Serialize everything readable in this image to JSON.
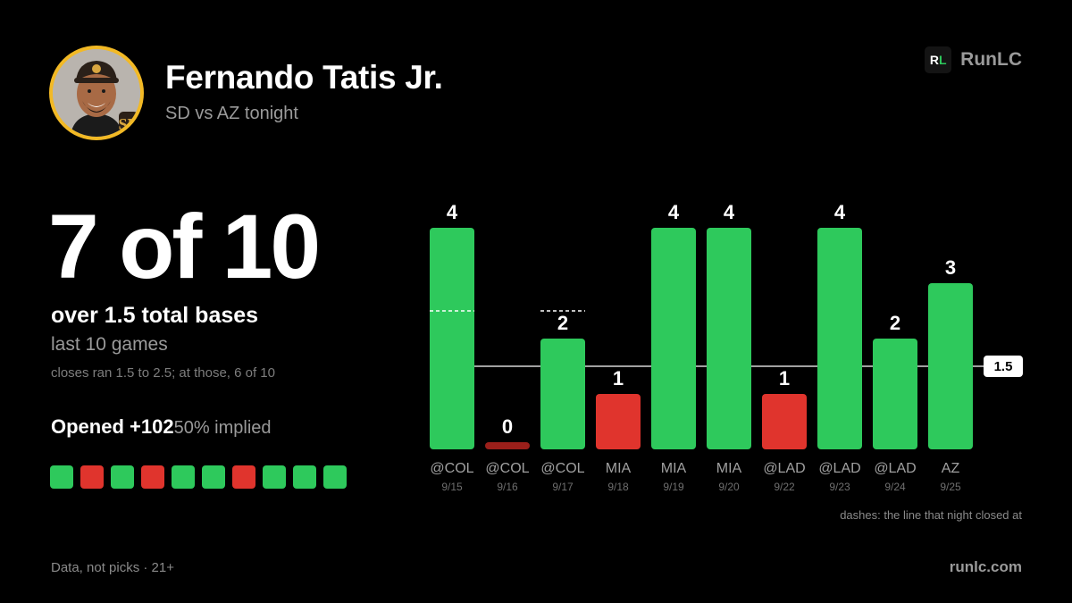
{
  "header": {
    "player_name": "Fernando Tatis Jr.",
    "matchup": "SD vs AZ tonight",
    "team_logo": "padres-sd-icon"
  },
  "brand": {
    "logo_text_r": "R",
    "logo_text_l": "L",
    "name": "RunLC",
    "url": "runlc.com"
  },
  "summary": {
    "headline": "7 of 10",
    "label": "over 1.5 total bases",
    "sub": "last 10 games",
    "note": "closes ran 1.5 to 2.5; at those, 6 of 10",
    "opened_label": "Opened +102",
    "opened_implied": "50% implied"
  },
  "results_strip": [
    "hit",
    "miss",
    "hit",
    "miss",
    "hit",
    "hit",
    "miss",
    "hit",
    "hit",
    "hit"
  ],
  "colors": {
    "hit": "#2ec95c",
    "miss": "#e0342d",
    "zero": "#9a1f1a",
    "grid": "#ffffff"
  },
  "footer": {
    "disclaimer": "Data, not picks · 21+"
  },
  "chart_data": {
    "type": "bar",
    "categories": [
      "@COL",
      "@COL",
      "@COL",
      "MIA",
      "MIA",
      "MIA",
      "@LAD",
      "@LAD",
      "@LAD",
      "AZ"
    ],
    "dates": [
      "9/15",
      "9/16",
      "9/17",
      "9/18",
      "9/19",
      "9/20",
      "9/22",
      "9/23",
      "9/24",
      "9/25"
    ],
    "values": [
      4,
      0,
      2,
      1,
      4,
      4,
      1,
      4,
      2,
      3
    ],
    "closing_lines": [
      2.5,
      null,
      2.5,
      null,
      null,
      null,
      null,
      null,
      null,
      null
    ],
    "line": 1.5,
    "line_label": "1.5",
    "ylim": [
      0,
      4
    ],
    "note": "dashes: the line that night closed at",
    "grid": false
  }
}
